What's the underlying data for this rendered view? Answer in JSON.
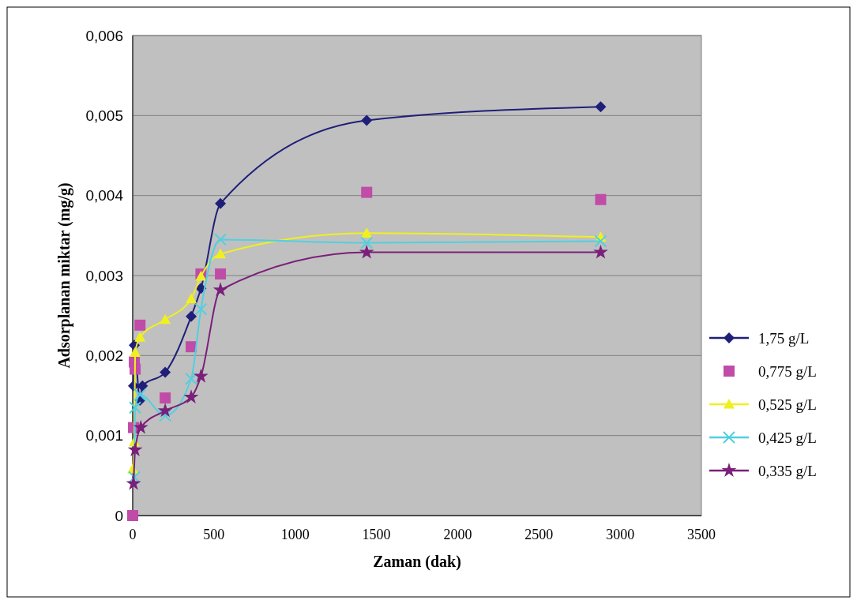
{
  "chart_data": {
    "type": "line",
    "xlabel": "Zaman (dak)",
    "ylabel": "Adsorplanan miktar (mg/g)",
    "xlim": [
      0,
      3500
    ],
    "xticks": [
      0,
      500,
      1000,
      1500,
      2000,
      2500,
      3000,
      3500
    ],
    "ylim": [
      0,
      0.006
    ],
    "yticks": [
      {
        "value": 0,
        "label": "0"
      },
      {
        "value": 0.001,
        "label": "0,001"
      },
      {
        "value": 0.002,
        "label": "0,002"
      },
      {
        "value": 0.003,
        "label": "0,003"
      },
      {
        "value": 0.004,
        "label": "0,004"
      },
      {
        "value": 0.005,
        "label": "0,005"
      },
      {
        "value": 0.006,
        "label": "0,006"
      }
    ],
    "grid": "y",
    "legend": "right",
    "series": [
      {
        "name": "1,75 g/L",
        "color": "#1f1f7a",
        "marker": "diamond",
        "x": [
          5,
          10,
          45,
          60,
          200,
          360,
          420,
          540,
          1440,
          2880
        ],
        "values": [
          0.00162,
          0.00213,
          0.00144,
          0.00162,
          0.00179,
          0.00249,
          0.00284,
          0.0039,
          0.00494,
          0.00511
        ]
      },
      {
        "name": "0,775 g/L",
        "type": "scatter",
        "color": "#c04ca8",
        "marker": "square",
        "x": [
          0,
          5,
          10,
          15,
          45,
          200,
          360,
          420,
          540,
          1440,
          2880
        ],
        "values": [
          0,
          0.0011,
          0.00192,
          0.00183,
          0.00238,
          0.00147,
          0.00211,
          0.00302,
          0.00302,
          0.00404,
          0.00395
        ]
      },
      {
        "name": "0,525 g/L",
        "color": "#f0f020",
        "marker": "triangle",
        "x": [
          0,
          10,
          15,
          45,
          200,
          360,
          420,
          540,
          1440,
          2880
        ],
        "values": [
          0.00058,
          0.00092,
          0.00204,
          0.00223,
          0.00245,
          0.00271,
          0.00299,
          0.00327,
          0.00353,
          0.00348
        ]
      },
      {
        "name": "0,425 g/L",
        "color": "#50d0e0",
        "marker": "cross",
        "x": [
          10,
          15,
          45,
          200,
          360,
          420,
          540,
          1440,
          2880
        ],
        "values": [
          0.00048,
          0.00135,
          0.00151,
          0.00125,
          0.00171,
          0.00258,
          0.00345,
          0.00341,
          0.00343
        ]
      },
      {
        "name": "0,335 g/L",
        "color": "#7a1f7a",
        "marker": "star",
        "x": [
          5,
          15,
          50,
          200,
          360,
          420,
          540,
          1440,
          2880
        ],
        "values": [
          0.0004,
          0.00082,
          0.0011,
          0.00131,
          0.00148,
          0.00174,
          0.00282,
          0.00329,
          0.00329
        ]
      }
    ]
  }
}
